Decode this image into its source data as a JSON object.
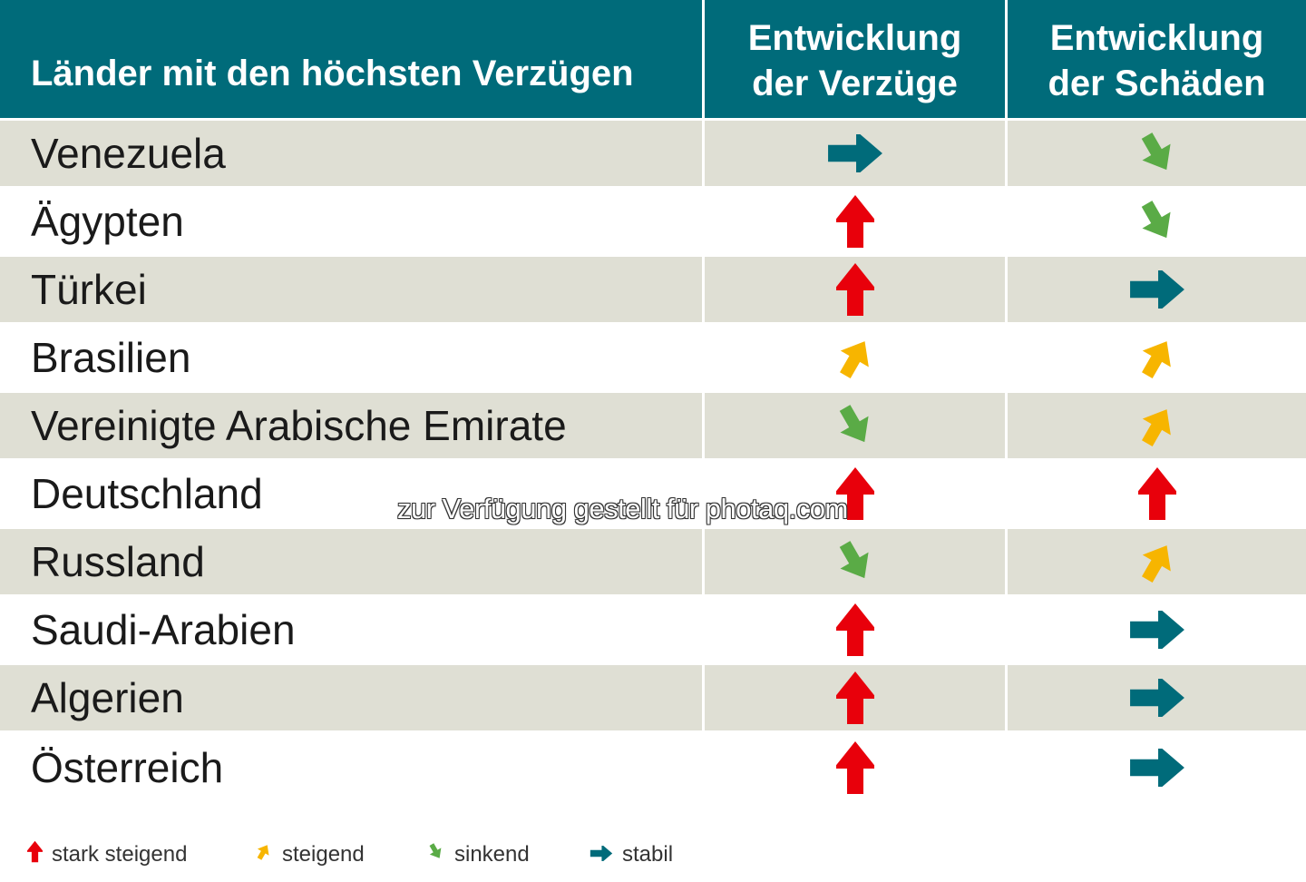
{
  "header": {
    "country_col": "Länder mit den höchsten Verzügen",
    "col_delays_line1": "Entwicklung",
    "col_delays_line2": "der Verzüge",
    "col_damages_line1": "Entwicklung",
    "col_damages_line2": "der Schäden"
  },
  "rows": [
    {
      "country": "Venezuela",
      "delays": "stable",
      "damages": "falling"
    },
    {
      "country": "Ägypten",
      "delays": "strong-rise",
      "damages": "falling"
    },
    {
      "country": "Türkei",
      "delays": "strong-rise",
      "damages": "stable"
    },
    {
      "country": "Brasilien",
      "delays": "rise",
      "damages": "rise"
    },
    {
      "country": "Vereinigte Arabische Emirate",
      "delays": "falling",
      "damages": "rise"
    },
    {
      "country": "Deutschland",
      "delays": "strong-rise",
      "damages": "strong-rise"
    },
    {
      "country": "Russland",
      "delays": "falling",
      "damages": "rise"
    },
    {
      "country": "Saudi-Arabien",
      "delays": "strong-rise",
      "damages": "stable"
    },
    {
      "country": "Algerien",
      "delays": "strong-rise",
      "damages": "stable"
    },
    {
      "country": "Österreich",
      "delays": "strong-rise",
      "damages": "stable"
    }
  ],
  "legend": {
    "strong_rise": "stark steigend",
    "rise": "steigend",
    "falling": "sinkend",
    "stable": "stabil"
  },
  "watermark": "zur Verfügung gestellt für photaq.com",
  "colors": {
    "header_bg": "#006b7a",
    "row_shaded": "#dfdfd4",
    "strong_rise": "#e8000b",
    "rise": "#f7b500",
    "falling": "#5aab46",
    "stable": "#006b7a"
  },
  "icons": {
    "strong-rise": "arrow-up-icon",
    "rise": "arrow-up-right-icon",
    "falling": "arrow-down-right-icon",
    "stable": "arrow-right-icon"
  }
}
